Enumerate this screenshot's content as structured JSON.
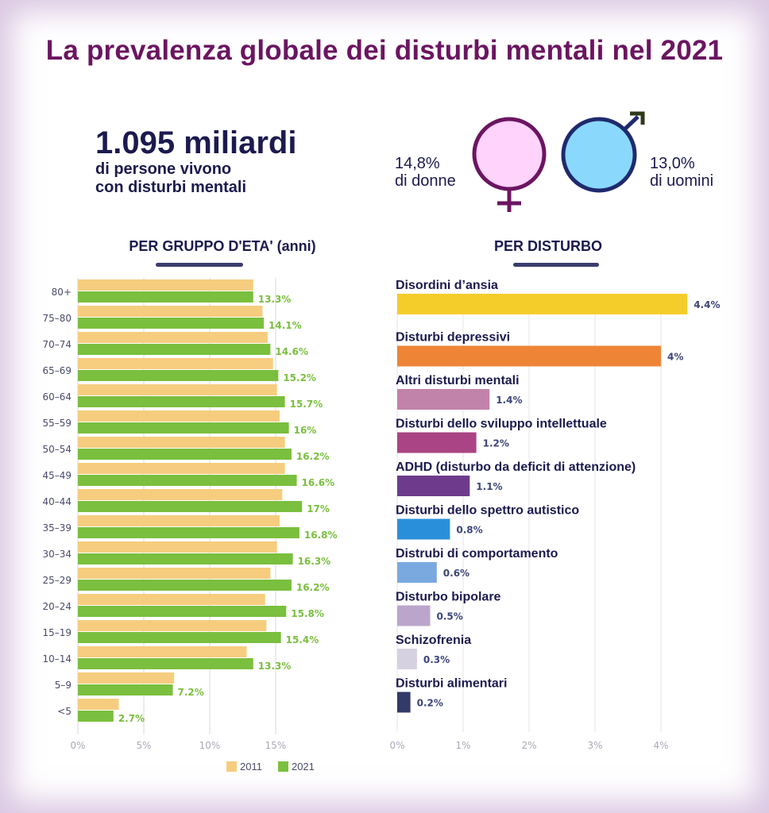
{
  "title": "La prevalenza globale dei disturbi mentali nel 2021",
  "headline": {
    "number": "1.095 miliardi",
    "line1": "di persone vivono",
    "line2": "con disturbi mentali"
  },
  "gender": {
    "women": {
      "pct": "14,8%",
      "label": "di donne",
      "fill": "#ffd3fb",
      "stroke": "#6b1561"
    },
    "men": {
      "pct": "13,0%",
      "label": "di uomini",
      "fill": "#8ad9fd",
      "stroke": "#1f2a6e"
    }
  },
  "chart_data": [
    {
      "type": "bar",
      "orientation": "horizontal",
      "title": "PER GRUPPO D'ETA' (anni)",
      "categories": [
        "80+",
        "75–80",
        "70–74",
        "65–69",
        "60–64",
        "55–59",
        "50–54",
        "45–49",
        "40–44",
        "35–39",
        "30–34",
        "25–29",
        "20–24",
        "15–19",
        "10–14",
        "5–9",
        "<5"
      ],
      "series": [
        {
          "name": "2011",
          "color": "#f6cd7f",
          "values": [
            13.3,
            14.0,
            14.4,
            14.8,
            15.1,
            15.3,
            15.7,
            15.7,
            15.5,
            15.3,
            15.1,
            14.6,
            14.2,
            14.3,
            12.8,
            7.3,
            3.1
          ]
        },
        {
          "name": "2021",
          "color": "#7abf3e",
          "values": [
            13.3,
            14.1,
            14.6,
            15.2,
            15.7,
            16.0,
            16.2,
            16.6,
            17.0,
            16.8,
            16.3,
            16.2,
            15.8,
            15.4,
            13.3,
            7.2,
            2.7
          ]
        }
      ],
      "data_labels": [
        "13.3%",
        "14.1%",
        "14.6%",
        "15.2%",
        "15.7%",
        "16%",
        "16.2%",
        "16.6%",
        "17%",
        "16.8%",
        "16.3%",
        "16.2%",
        "15.8%",
        "15.4%",
        "13.3%",
        "7.2%",
        "2.7%"
      ],
      "xlim": [
        0,
        18
      ],
      "xticks": [
        0,
        5,
        10,
        15
      ],
      "xtick_labels": [
        "0%",
        "5%",
        "10%",
        "15%"
      ],
      "grid": true,
      "legend": {
        "placement": "bottom-right",
        "entries": [
          "2011",
          "2021"
        ]
      },
      "xlabel": "",
      "ylabel": ""
    },
    {
      "type": "bar",
      "orientation": "horizontal",
      "title": "PER DISTURBO",
      "categories": [
        "Disordini d’ansia",
        "Disturbi depressivi",
        "Altri disturbi mentali",
        "Disturbi dello sviluppo intellettuale",
        "ADHD (disturbo da deficit di attenzione)",
        "Disturbi dello spettro autistico",
        "Distrubi di comportamento",
        "Disturbo bipolare",
        "Schizofrenia",
        "Disturbi alimentari"
      ],
      "values": [
        4.4,
        4.0,
        1.4,
        1.2,
        1.1,
        0.8,
        0.6,
        0.5,
        0.3,
        0.2
      ],
      "data_labels": [
        "4.4%",
        "4%",
        "1.4%",
        "1.2%",
        "1.1%",
        "0.8%",
        "0.6%",
        "0.5%",
        "0.3%",
        "0.2%"
      ],
      "colors": [
        "#f5cd2a",
        "#ee8536",
        "#c283aa",
        "#aa4484",
        "#6e3b8c",
        "#2a8fdb",
        "#7aa9e0",
        "#bca5cb",
        "#d6d1e0",
        "#333a68"
      ],
      "xlim": [
        0,
        4.5
      ],
      "xticks": [
        0,
        1,
        2,
        3,
        4
      ],
      "xtick_labels": [
        "0%",
        "1%",
        "2%",
        "3%",
        "4%"
      ],
      "grid": true,
      "xlabel": "",
      "ylabel": ""
    }
  ]
}
